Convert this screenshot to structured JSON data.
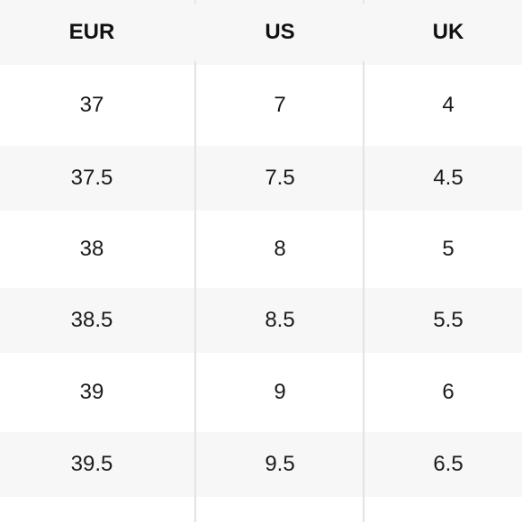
{
  "size_table": {
    "headers": [
      "EUR",
      "US",
      "UK"
    ],
    "rows": [
      [
        "37",
        "7",
        "4"
      ],
      [
        "37.5",
        "7.5",
        "4.5"
      ],
      [
        "38",
        "8",
        "5"
      ],
      [
        "38.5",
        "8.5",
        "5.5"
      ],
      [
        "39",
        "9",
        "6"
      ],
      [
        "39.5",
        "9.5",
        "6.5"
      ]
    ]
  }
}
